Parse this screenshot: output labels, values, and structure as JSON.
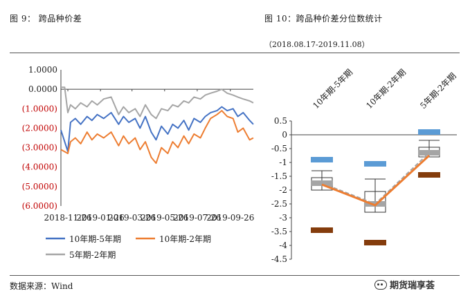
{
  "left_figure": {
    "title": "图 9：  跨品种价差"
  },
  "right_figure": {
    "title": "图 10：跨品种价差分位数统计",
    "subtitle": "（2018.08.17-2019.11.08）"
  },
  "source": "数据来源：Wind",
  "watermark": "期货瑞享荟",
  "colors": {
    "blue": "#4472C4",
    "orange": "#ED7D31",
    "gray": "#A5A5A5",
    "dark_red": "#843C0C",
    "light_blue": "#5B9BD5",
    "negative_label": "#C00000"
  },
  "chart_data": [
    {
      "type": "line",
      "title": "跨品种价差",
      "x_ticks": [
        "2018-11-26",
        "2019-01-26",
        "2019-03-26",
        "2019-05-26",
        "2019-07-26",
        "2019-09-26"
      ],
      "y_ticks": [
        "1.0000",
        "0.0000",
        "(1.0000)",
        "(2.0000)",
        "(3.0000)",
        "(4.0000)",
        "(5.0000)",
        "(6.0000)"
      ],
      "y_tick_values": [
        1,
        0,
        -1,
        -2,
        -3,
        -4,
        -5,
        -6
      ],
      "ylim": [
        -6,
        1
      ],
      "x_range": [
        "2018-11-13",
        "2019-11-08"
      ],
      "series": [
        {
          "name": "10年期-5年期",
          "color": "#4472C4",
          "x": [
            "2018-11-13",
            "2018-11-26",
            "2018-12-01",
            "2018-12-10",
            "2018-12-20",
            "2019-01-01",
            "2019-01-10",
            "2019-01-20",
            "2019-02-01",
            "2019-02-15",
            "2019-03-01",
            "2019-03-10",
            "2019-03-20",
            "2019-04-01",
            "2019-04-10",
            "2019-04-20",
            "2019-05-01",
            "2019-05-10",
            "2019-05-20",
            "2019-06-01",
            "2019-06-10",
            "2019-06-20",
            "2019-07-01",
            "2019-07-10",
            "2019-07-20",
            "2019-08-01",
            "2019-08-10",
            "2019-08-20",
            "2019-09-01",
            "2019-09-10",
            "2019-09-20",
            "2019-10-01",
            "2019-10-10",
            "2019-10-20",
            "2019-11-01",
            "2019-11-08"
          ],
          "values": [
            -2.1,
            -3.2,
            -1.7,
            -1.5,
            -1.8,
            -1.4,
            -1.6,
            -1.3,
            -1.5,
            -1.2,
            -1.8,
            -1.4,
            -1.7,
            -1.5,
            -2.0,
            -1.4,
            -2.2,
            -2.6,
            -1.9,
            -2.3,
            -1.8,
            -2.0,
            -1.6,
            -2.1,
            -1.5,
            -1.7,
            -1.4,
            -1.2,
            -1.1,
            -0.9,
            -1.1,
            -1.0,
            -1.4,
            -1.2,
            -1.6,
            -1.8
          ]
        },
        {
          "name": "10年期-2年期",
          "color": "#ED7D31",
          "x": [
            "2018-11-13",
            "2018-11-26",
            "2018-12-01",
            "2018-12-10",
            "2018-12-20",
            "2019-01-01",
            "2019-01-10",
            "2019-01-20",
            "2019-02-01",
            "2019-02-15",
            "2019-03-01",
            "2019-03-10",
            "2019-03-20",
            "2019-04-01",
            "2019-04-10",
            "2019-04-20",
            "2019-05-01",
            "2019-05-10",
            "2019-05-20",
            "2019-06-01",
            "2019-06-10",
            "2019-06-20",
            "2019-07-01",
            "2019-07-10",
            "2019-07-20",
            "2019-08-01",
            "2019-08-10",
            "2019-08-20",
            "2019-09-01",
            "2019-09-10",
            "2019-09-20",
            "2019-10-01",
            "2019-10-10",
            "2019-10-20",
            "2019-11-01",
            "2019-11-08"
          ],
          "values": [
            -3.1,
            -3.3,
            -2.7,
            -2.5,
            -2.8,
            -2.2,
            -2.6,
            -2.3,
            -2.5,
            -2.2,
            -2.9,
            -2.4,
            -2.8,
            -2.5,
            -3.1,
            -2.7,
            -3.5,
            -3.8,
            -3.0,
            -3.3,
            -2.7,
            -3.0,
            -2.4,
            -2.8,
            -2.3,
            -2.5,
            -2.0,
            -1.5,
            -1.3,
            -1.1,
            -1.4,
            -1.5,
            -2.2,
            -2.0,
            -2.6,
            -2.5
          ]
        },
        {
          "name": "5年期-2年期",
          "color": "#A5A5A5",
          "x": [
            "2018-11-13",
            "2018-11-20",
            "2018-11-26",
            "2018-12-01",
            "2018-12-10",
            "2018-12-20",
            "2019-01-01",
            "2019-01-10",
            "2019-01-20",
            "2019-02-01",
            "2019-02-15",
            "2019-03-01",
            "2019-03-10",
            "2019-03-20",
            "2019-04-01",
            "2019-04-10",
            "2019-04-20",
            "2019-05-01",
            "2019-05-10",
            "2019-05-20",
            "2019-06-01",
            "2019-06-10",
            "2019-06-20",
            "2019-07-01",
            "2019-07-10",
            "2019-07-20",
            "2019-08-01",
            "2019-08-10",
            "2019-08-20",
            "2019-09-01",
            "2019-09-10",
            "2019-09-20",
            "2019-10-01",
            "2019-10-10",
            "2019-10-20",
            "2019-11-01",
            "2019-11-08"
          ],
          "values": [
            0.1,
            0.1,
            -1.2,
            -0.8,
            -1.0,
            -0.7,
            -0.9,
            -0.6,
            -0.8,
            -0.5,
            -0.4,
            -1.3,
            -0.9,
            -1.2,
            -1.0,
            -1.4,
            -0.8,
            -1.3,
            -1.5,
            -1.0,
            -1.1,
            -0.8,
            -0.9,
            -0.6,
            -0.7,
            -0.4,
            -0.5,
            -0.3,
            -0.2,
            -0.1,
            0.0,
            -0.2,
            -0.3,
            -0.4,
            -0.5,
            -0.6,
            -0.7
          ]
        }
      ],
      "legend": [
        "10年期-5年期",
        "10年期-2年期",
        "5年期-2年期"
      ]
    },
    {
      "type": "box",
      "title": "跨品种价差分位数统计",
      "categories": [
        "10年期-5年期",
        "10年期-2年期",
        "5年期-2年期"
      ],
      "y_ticks": [
        "0.5",
        "0",
        "-0.5",
        "-1",
        "-1.5",
        "-2",
        "-2.5",
        "-3",
        "-3.5",
        "-4",
        "-4.5"
      ],
      "y_tick_values": [
        0.5,
        0,
        -0.5,
        -1,
        -1.5,
        -2,
        -2.5,
        -3,
        -3.5,
        -4,
        -4.5
      ],
      "ylim": [
        -4.5,
        0.5
      ],
      "max": [
        -0.9,
        -1.05,
        0.1
      ],
      "min": [
        -3.45,
        -3.9,
        -1.45
      ],
      "q3": [
        -1.55,
        -2.05,
        -0.45
      ],
      "q1": [
        -2.0,
        -2.8,
        -0.8
      ],
      "median": [
        -1.75,
        -2.5,
        -0.65
      ],
      "whisker_top": [
        -1.3,
        -1.6,
        -0.2
      ],
      "whisker_bottom": [
        -2.0,
        -2.8,
        -0.8
      ],
      "current": [
        -1.8,
        -2.55,
        -0.75
      ]
    }
  ]
}
